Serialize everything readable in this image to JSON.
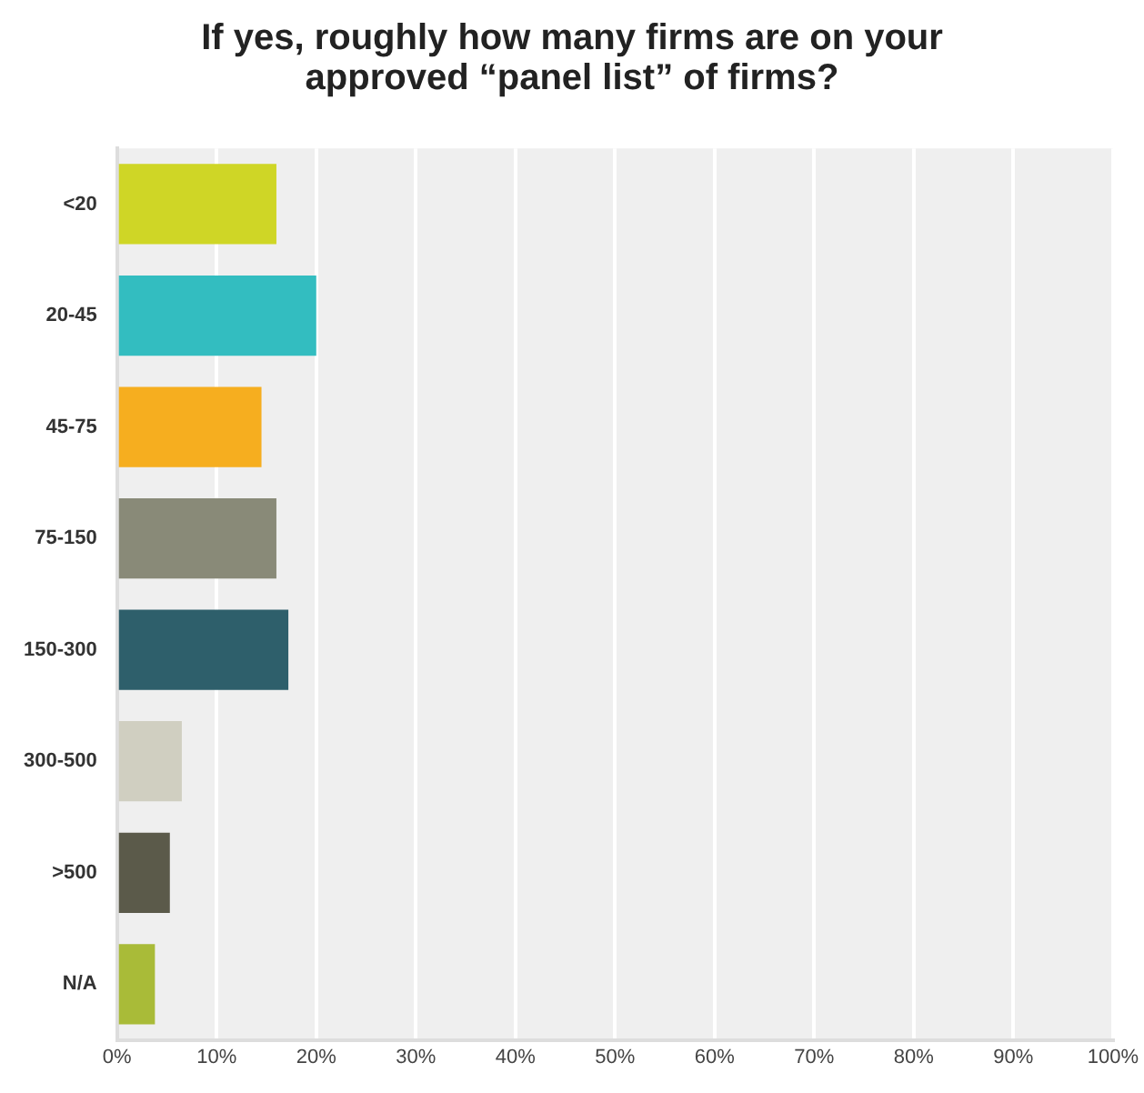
{
  "chart_data": {
    "type": "bar",
    "orientation": "horizontal",
    "title": "If yes, roughly how many firms are on your approved “panel list” of firms?",
    "categories": [
      "<20",
      "20-45",
      "45-75",
      "75-150",
      "150-300",
      "300-500",
      ">500",
      "N/A"
    ],
    "values": [
      16,
      20,
      14.5,
      16,
      17.2,
      6.5,
      5.3,
      3.8
    ],
    "colors": [
      "#cfd626",
      "#33bdc0",
      "#f6ae1f",
      "#898a78",
      "#2e5f6b",
      "#d0cfc1",
      "#5b5a4a",
      "#a9bb38"
    ],
    "xlim": [
      0,
      100
    ],
    "xticks": [
      {
        "value": 0,
        "label": "0%"
      },
      {
        "value": 10,
        "label": "10%"
      },
      {
        "value": 20,
        "label": "20%"
      },
      {
        "value": 30,
        "label": "30%"
      },
      {
        "value": 40,
        "label": "40%"
      },
      {
        "value": 50,
        "label": "50%"
      },
      {
        "value": 60,
        "label": "60%"
      },
      {
        "value": 70,
        "label": "70%"
      },
      {
        "value": 80,
        "label": "80%"
      },
      {
        "value": 90,
        "label": "90%"
      },
      {
        "value": 100,
        "label": "100%"
      }
    ],
    "grid": "x",
    "legend": false
  }
}
